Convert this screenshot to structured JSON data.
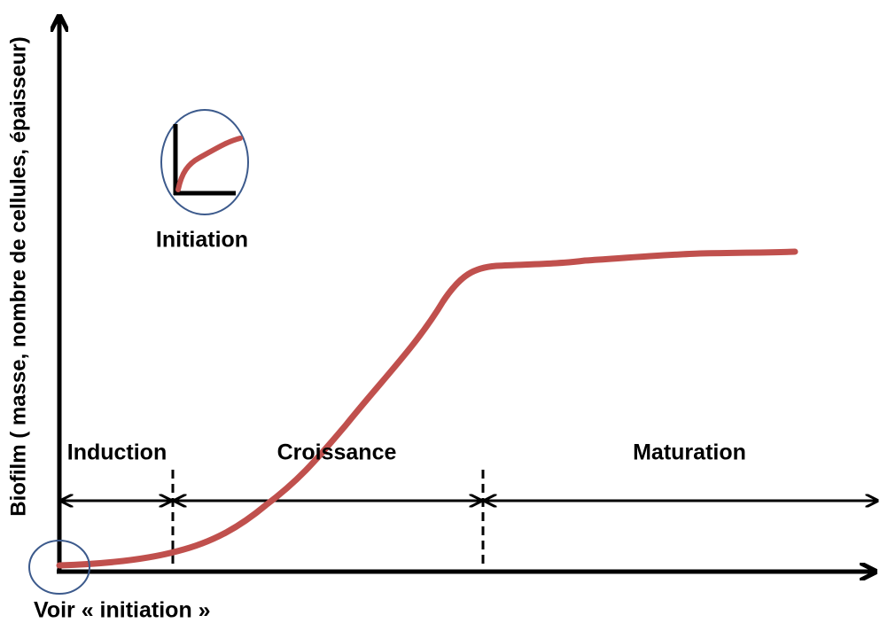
{
  "y_axis_label": "Biofilm ( masse, nombre de cellules, épaisseur)",
  "phases": [
    "Induction",
    "Croissance",
    "Maturation"
  ],
  "inset": {
    "label": "Initiation"
  },
  "note": "Voir « initiation »"
}
